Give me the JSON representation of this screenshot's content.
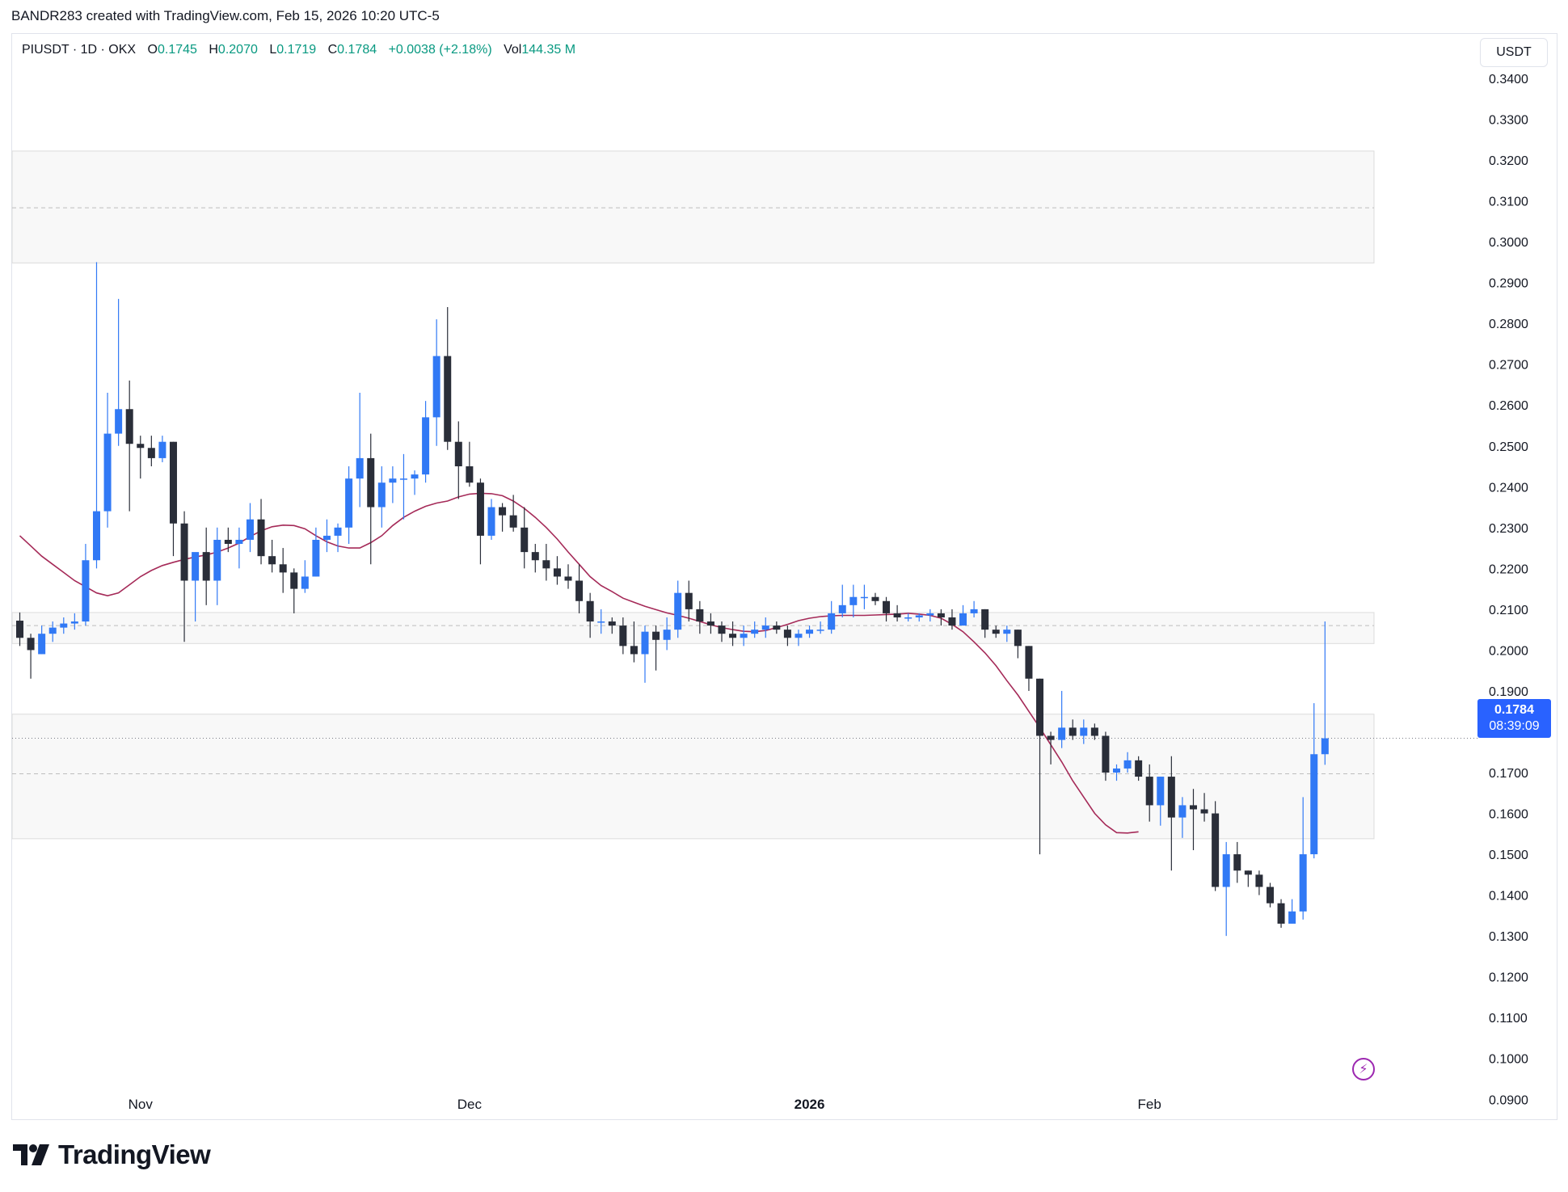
{
  "header": {
    "caption": "BANDR283 created with TradingView.com, Feb 15, 2026 10:20 UTC-5"
  },
  "legend": {
    "symbol": "PIUSDT · 1D · OKX",
    "o_label": "O",
    "o": "0.1745",
    "h_label": "H",
    "h": "0.2070",
    "l_label": "L",
    "l": "0.1719",
    "c_label": "C",
    "c": "0.1784",
    "change": "+0.0038 (+2.18%)",
    "vol_label": "Vol",
    "vol": "144.35 M"
  },
  "currency_button": "USDT",
  "price_tag": {
    "price": "0.1784",
    "countdown": "08:39:09"
  },
  "alert_icon": "lightning-icon",
  "brand": {
    "logo": "tradingview-logo",
    "name": "TradingView"
  },
  "colors": {
    "up": "#3179f5",
    "down": "#2a2e39",
    "ma": "#a52a58",
    "zone_fill": "#f8f8f8",
    "zone_border": "#dcdcdc",
    "accent": "#2962ff",
    "positive_text": "#089981"
  },
  "chart_data": {
    "type": "candlestick",
    "title": "PIUSDT · 1D · OKX",
    "ylabel": "USDT",
    "ylim": [
      0.0855,
      0.3487
    ],
    "y_ticks": [
      "0.3400",
      "0.3300",
      "0.3200",
      "0.3100",
      "0.3000",
      "0.2900",
      "0.2800",
      "0.2700",
      "0.2600",
      "0.2500",
      "0.2400",
      "0.2300",
      "0.2200",
      "0.2100",
      "0.2000",
      "0.1900",
      "0.1800",
      "0.1700",
      "0.1600",
      "0.1500",
      "0.1400",
      "0.1300",
      "0.1200",
      "0.1100",
      "0.1000",
      "0.0900"
    ],
    "x_labels": [
      {
        "label": "Nov",
        "index": 11,
        "bold": false
      },
      {
        "label": "Dec",
        "index": 41,
        "bold": false
      },
      {
        "label": "2026",
        "index": 72,
        "bold": true
      },
      {
        "label": "Feb",
        "index": 103,
        "bold": false
      }
    ],
    "candles": [
      [
        0.2072,
        0.2092,
        0.201,
        0.203
      ],
      [
        0.203,
        0.204,
        0.193,
        0.2
      ],
      [
        0.199,
        0.206,
        0.199,
        0.204
      ],
      [
        0.204,
        0.207,
        0.202,
        0.2055
      ],
      [
        0.2055,
        0.208,
        0.204,
        0.2065
      ],
      [
        0.2065,
        0.209,
        0.205,
        0.207
      ],
      [
        0.207,
        0.226,
        0.206,
        0.222
      ],
      [
        0.222,
        0.295,
        0.22,
        0.234
      ],
      [
        0.234,
        0.263,
        0.23,
        0.253
      ],
      [
        0.253,
        0.286,
        0.25,
        0.259
      ],
      [
        0.259,
        0.266,
        0.234,
        0.2505
      ],
      [
        0.2505,
        0.2525,
        0.242,
        0.2495
      ],
      [
        0.2495,
        0.2525,
        0.245,
        0.247
      ],
      [
        0.247,
        0.2525,
        0.246,
        0.251
      ],
      [
        0.251,
        0.251,
        0.223,
        0.231
      ],
      [
        0.231,
        0.234,
        0.202,
        0.217
      ],
      [
        0.217,
        0.223,
        0.207,
        0.224
      ],
      [
        0.224,
        0.23,
        0.211,
        0.217
      ],
      [
        0.217,
        0.23,
        0.211,
        0.227
      ],
      [
        0.227,
        0.23,
        0.224,
        0.226
      ],
      [
        0.226,
        0.23,
        0.22,
        0.227
      ],
      [
        0.227,
        0.236,
        0.224,
        0.232
      ],
      [
        0.232,
        0.237,
        0.221,
        0.223
      ],
      [
        0.223,
        0.227,
        0.219,
        0.221
      ],
      [
        0.221,
        0.225,
        0.214,
        0.219
      ],
      [
        0.219,
        0.22,
        0.209,
        0.215
      ],
      [
        0.215,
        0.222,
        0.214,
        0.218
      ],
      [
        0.218,
        0.23,
        0.218,
        0.227
      ],
      [
        0.227,
        0.232,
        0.224,
        0.228
      ],
      [
        0.228,
        0.231,
        0.224,
        0.23
      ],
      [
        0.23,
        0.245,
        0.226,
        0.242
      ],
      [
        0.242,
        0.263,
        0.235,
        0.247
      ],
      [
        0.247,
        0.253,
        0.221,
        0.235
      ],
      [
        0.235,
        0.245,
        0.23,
        0.241
      ],
      [
        0.241,
        0.245,
        0.236,
        0.242
      ],
      [
        0.242,
        0.248,
        0.232,
        0.242
      ],
      [
        0.242,
        0.244,
        0.238,
        0.243
      ],
      [
        0.243,
        0.261,
        0.241,
        0.257
      ],
      [
        0.257,
        0.281,
        0.25,
        0.272
      ],
      [
        0.272,
        0.284,
        0.249,
        0.251
      ],
      [
        0.251,
        0.256,
        0.237,
        0.245
      ],
      [
        0.245,
        0.251,
        0.24,
        0.241
      ],
      [
        0.241,
        0.242,
        0.221,
        0.228
      ],
      [
        0.228,
        0.237,
        0.227,
        0.235
      ],
      [
        0.235,
        0.236,
        0.229,
        0.233
      ],
      [
        0.233,
        0.238,
        0.229,
        0.23
      ],
      [
        0.23,
        0.235,
        0.22,
        0.224
      ],
      [
        0.224,
        0.226,
        0.219,
        0.222
      ],
      [
        0.222,
        0.226,
        0.217,
        0.22
      ],
      [
        0.22,
        0.223,
        0.216,
        0.218
      ],
      [
        0.218,
        0.221,
        0.215,
        0.217
      ],
      [
        0.217,
        0.221,
        0.209,
        0.212
      ],
      [
        0.212,
        0.214,
        0.203,
        0.207
      ],
      [
        0.207,
        0.21,
        0.204,
        0.207
      ],
      [
        0.207,
        0.208,
        0.204,
        0.206
      ],
      [
        0.206,
        0.208,
        0.199,
        0.201
      ],
      [
        0.201,
        0.207,
        0.197,
        0.199
      ],
      [
        0.199,
        0.206,
        0.192,
        0.2045
      ],
      [
        0.2045,
        0.206,
        0.195,
        0.2025
      ],
      [
        0.2025,
        0.208,
        0.2,
        0.205
      ],
      [
        0.205,
        0.217,
        0.203,
        0.214
      ],
      [
        0.214,
        0.217,
        0.207,
        0.21
      ],
      [
        0.21,
        0.212,
        0.204,
        0.207
      ],
      [
        0.207,
        0.209,
        0.204,
        0.206
      ],
      [
        0.206,
        0.207,
        0.202,
        0.204
      ],
      [
        0.204,
        0.207,
        0.201,
        0.203
      ],
      [
        0.203,
        0.206,
        0.201,
        0.204
      ],
      [
        0.204,
        0.207,
        0.203,
        0.205
      ],
      [
        0.205,
        0.208,
        0.203,
        0.206
      ],
      [
        0.206,
        0.207,
        0.204,
        0.205
      ],
      [
        0.205,
        0.206,
        0.201,
        0.203
      ],
      [
        0.203,
        0.205,
        0.201,
        0.204
      ],
      [
        0.204,
        0.206,
        0.203,
        0.205
      ],
      [
        0.205,
        0.207,
        0.204,
        0.205
      ],
      [
        0.205,
        0.212,
        0.204,
        0.209
      ],
      [
        0.209,
        0.216,
        0.208,
        0.211
      ],
      [
        0.211,
        0.216,
        0.208,
        0.213
      ],
      [
        0.213,
        0.216,
        0.21,
        0.213
      ],
      [
        0.213,
        0.214,
        0.211,
        0.212
      ],
      [
        0.212,
        0.213,
        0.207,
        0.209
      ],
      [
        0.209,
        0.211,
        0.207,
        0.208
      ],
      [
        0.208,
        0.209,
        0.207,
        0.208
      ],
      [
        0.208,
        0.209,
        0.207,
        0.2085
      ],
      [
        0.2085,
        0.21,
        0.207,
        0.209
      ],
      [
        0.209,
        0.21,
        0.206,
        0.208
      ],
      [
        0.208,
        0.21,
        0.205,
        0.206
      ],
      [
        0.206,
        0.211,
        0.206,
        0.209
      ],
      [
        0.209,
        0.212,
        0.208,
        0.21
      ],
      [
        0.21,
        0.21,
        0.203,
        0.205
      ],
      [
        0.205,
        0.206,
        0.203,
        0.204
      ],
      [
        0.204,
        0.206,
        0.202,
        0.205
      ],
      [
        0.205,
        0.205,
        0.198,
        0.201
      ],
      [
        0.201,
        0.201,
        0.19,
        0.193
      ],
      [
        0.193,
        0.193,
        0.15,
        0.179
      ],
      [
        0.179,
        0.18,
        0.172,
        0.178
      ],
      [
        0.178,
        0.19,
        0.176,
        0.181
      ],
      [
        0.181,
        0.183,
        0.178,
        0.179
      ],
      [
        0.179,
        0.183,
        0.177,
        0.181
      ],
      [
        0.181,
        0.182,
        0.178,
        0.179
      ],
      [
        0.179,
        0.18,
        0.168,
        0.17
      ],
      [
        0.17,
        0.172,
        0.168,
        0.171
      ],
      [
        0.171,
        0.175,
        0.17,
        0.173
      ],
      [
        0.173,
        0.174,
        0.168,
        0.169
      ],
      [
        0.169,
        0.172,
        0.158,
        0.162
      ],
      [
        0.162,
        0.169,
        0.157,
        0.169
      ],
      [
        0.169,
        0.174,
        0.146,
        0.159
      ],
      [
        0.159,
        0.164,
        0.154,
        0.162
      ],
      [
        0.162,
        0.166,
        0.151,
        0.161
      ],
      [
        0.161,
        0.165,
        0.158,
        0.16
      ],
      [
        0.16,
        0.163,
        0.141,
        0.142
      ],
      [
        0.142,
        0.153,
        0.13,
        0.15
      ],
      [
        0.15,
        0.153,
        0.143,
        0.146
      ],
      [
        0.146,
        0.146,
        0.142,
        0.145
      ],
      [
        0.145,
        0.146,
        0.14,
        0.142
      ],
      [
        0.142,
        0.143,
        0.137,
        0.138
      ],
      [
        0.138,
        0.139,
        0.132,
        0.133
      ],
      [
        0.133,
        0.139,
        0.133,
        0.136
      ],
      [
        0.136,
        0.164,
        0.134,
        0.15
      ],
      [
        0.15,
        0.187,
        0.149,
        0.1745
      ],
      [
        0.1745,
        0.207,
        0.1719,
        0.1784
      ]
    ],
    "candle_format": [
      "open",
      "high",
      "low",
      "close"
    ],
    "moving_average": {
      "start_index": 0,
      "values": [
        0.228,
        0.2255,
        0.223,
        0.221,
        0.219,
        0.217,
        0.2155,
        0.214,
        0.2133,
        0.214,
        0.216,
        0.218,
        0.2195,
        0.2207,
        0.2215,
        0.2222,
        0.2228,
        0.2233,
        0.224,
        0.225,
        0.2262,
        0.2278,
        0.2292,
        0.2302,
        0.2306,
        0.2305,
        0.2297,
        0.228,
        0.2265,
        0.2255,
        0.225,
        0.225,
        0.2263,
        0.228,
        0.2305,
        0.2325,
        0.234,
        0.2352,
        0.236,
        0.2365,
        0.2375,
        0.2382,
        0.2384,
        0.2383,
        0.2378,
        0.2365,
        0.2347,
        0.2325,
        0.23,
        0.2272,
        0.224,
        0.221,
        0.218,
        0.2158,
        0.2143,
        0.2127,
        0.2117,
        0.2107,
        0.2099,
        0.2091,
        0.2085,
        0.2078,
        0.207,
        0.2062,
        0.2055,
        0.205,
        0.2046,
        0.2045,
        0.2048,
        0.2055,
        0.2063,
        0.2072,
        0.2078,
        0.2082,
        0.2084,
        0.2085,
        0.2085,
        0.2085,
        0.2086,
        0.2087,
        0.2088,
        0.209,
        0.2088,
        0.2085,
        0.2078,
        0.2063,
        0.2045,
        0.202,
        0.1993,
        0.1962,
        0.1925,
        0.189,
        0.185,
        0.181,
        0.1768,
        0.1726,
        0.168,
        0.164,
        0.16,
        0.1572,
        0.1553,
        0.1552,
        0.1555
      ]
    },
    "zones": [
      {
        "top": 0.3222,
        "bottom": 0.2948,
        "midline": 0.3083
      },
      {
        "top": 0.2092,
        "bottom": 0.2016,
        "midline": 0.206
      },
      {
        "top": 0.1843,
        "bottom": 0.1538,
        "midline": 0.1697
      }
    ],
    "last_price_line": 0.1784
  }
}
